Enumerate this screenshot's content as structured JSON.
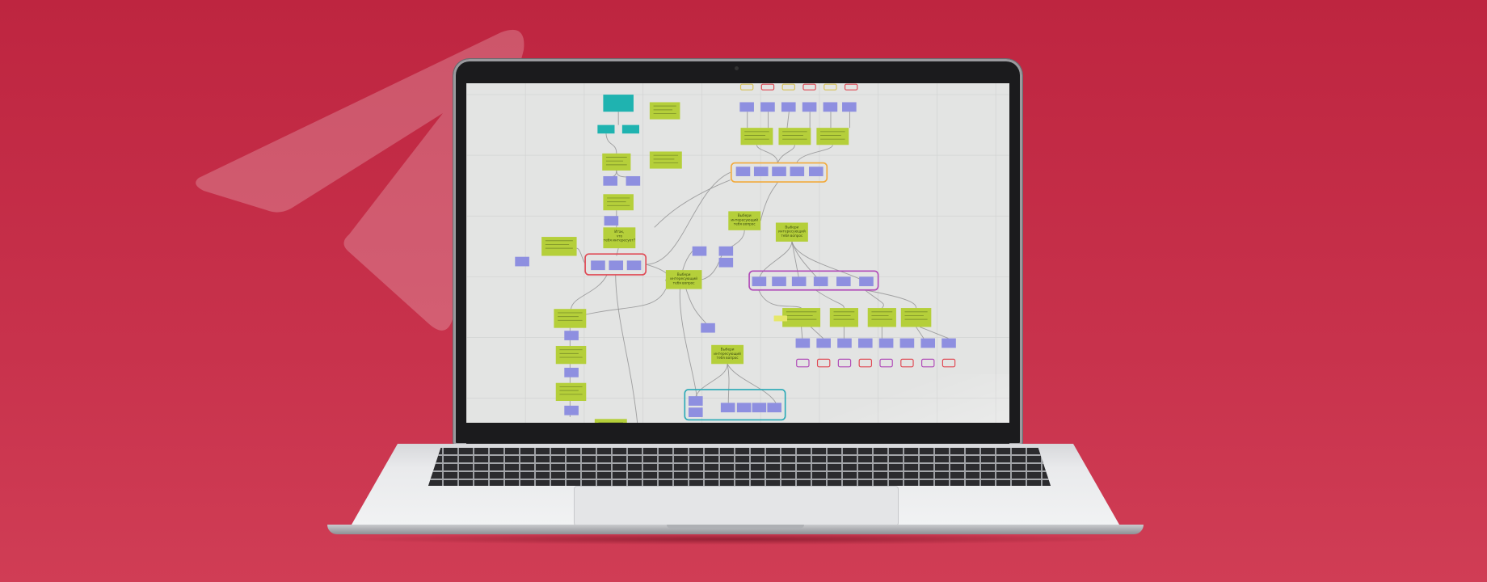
{
  "background_color": "#c02a44",
  "screen": {
    "app": "mind-map board",
    "sticky_color": "#b5cf3a",
    "teal_sticky_color": "#1fb3b0",
    "card_color": "#8e8fe0",
    "group_colors": {
      "orange": "#f2a93b",
      "red": "#e04a55",
      "purple": "#b04ab8",
      "teal": "#2aa9b6"
    },
    "stickies": {
      "choose_question_1": "Выбери интересующий тебя вопрос",
      "choose_question_2": "Выбери интересующий тебя вопрос",
      "choose_question_3": "Выбери интересующий тебя вопрос",
      "choose_question_4": "Выбери интересующий тебя вопрос",
      "what_interests": "Итак, что тебя интересует?"
    }
  }
}
